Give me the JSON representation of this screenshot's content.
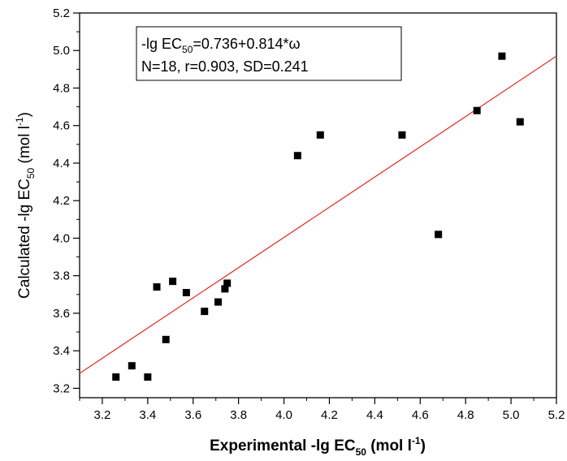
{
  "chart_data": {
    "type": "scatter",
    "xlabel": {
      "prefix": "Experimental -lg EC",
      "sub": "50",
      "mid": " (mol l",
      "sup": "-1",
      "suffix": ")"
    },
    "ylabel": {
      "prefix": "Calculated -lg EC",
      "sub": "50",
      "mid": " (mol l",
      "sup": "-1",
      "suffix": ")"
    },
    "xlim": [
      3.1,
      5.2
    ],
    "ylim": [
      3.15,
      5.2
    ],
    "x_ticks": [
      "3.2",
      "3.4",
      "3.6",
      "3.8",
      "4.0",
      "4.2",
      "4.4",
      "4.6",
      "4.8",
      "5.0",
      "5.2"
    ],
    "y_ticks": [
      "3.2",
      "3.4",
      "3.6",
      "3.8",
      "4.0",
      "4.2",
      "4.4",
      "4.6",
      "4.8",
      "5.0",
      "5.2"
    ],
    "grid": false,
    "annotation": {
      "line1_prefix": "-lg EC",
      "line1_sub": "50",
      "line1_suffix": "=0.736+0.814*ω",
      "line2": "N=18, r=0.903, SD=0.241"
    },
    "fit_line": {
      "x": [
        3.1,
        5.2
      ],
      "y": [
        3.28,
        4.97
      ],
      "color": "#e8262b"
    },
    "marker_color": "#000000",
    "points": [
      {
        "x": 3.26,
        "y": 3.26
      },
      {
        "x": 3.33,
        "y": 3.32
      },
      {
        "x": 3.4,
        "y": 3.26
      },
      {
        "x": 3.44,
        "y": 3.74
      },
      {
        "x": 3.48,
        "y": 3.46
      },
      {
        "x": 3.51,
        "y": 3.77
      },
      {
        "x": 3.57,
        "y": 3.71
      },
      {
        "x": 3.65,
        "y": 3.61
      },
      {
        "x": 3.71,
        "y": 3.66
      },
      {
        "x": 3.74,
        "y": 3.73
      },
      {
        "x": 3.75,
        "y": 3.76
      },
      {
        "x": 4.06,
        "y": 4.44
      },
      {
        "x": 4.16,
        "y": 4.55
      },
      {
        "x": 4.52,
        "y": 4.55
      },
      {
        "x": 4.68,
        "y": 4.02
      },
      {
        "x": 4.85,
        "y": 4.68
      },
      {
        "x": 4.96,
        "y": 4.97
      },
      {
        "x": 5.04,
        "y": 4.62
      }
    ]
  }
}
